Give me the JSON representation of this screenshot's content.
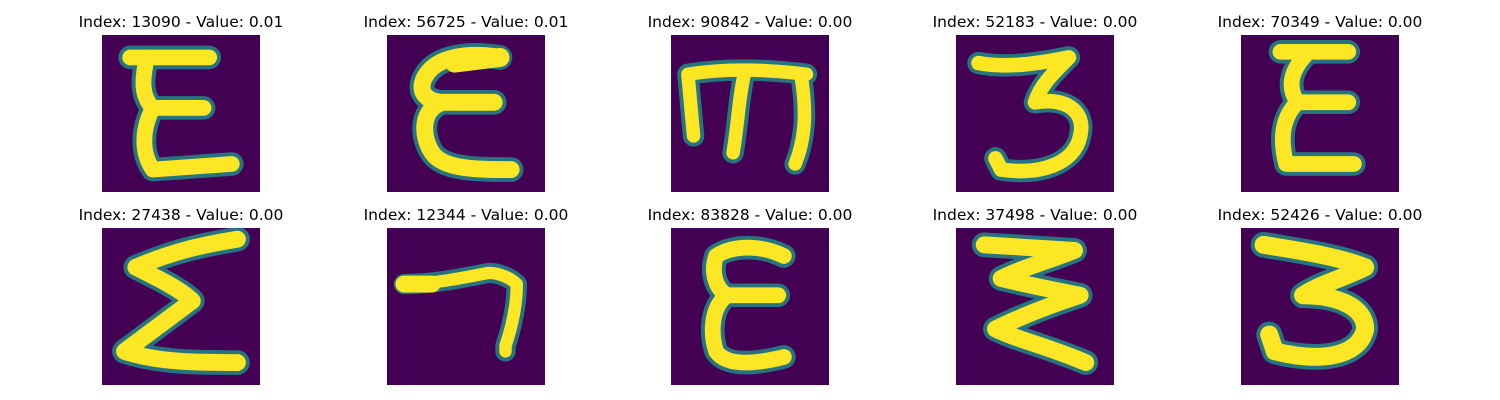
{
  "figure": {
    "colormap": {
      "background": "#440154",
      "mid": "#21918c",
      "foreground": "#fde725"
    },
    "panels": [
      {
        "title": "Index: 13090 - Value: 0.01",
        "index": 13090,
        "value": "0.01",
        "glyph": "E"
      },
      {
        "title": "Index: 56725 - Value: 0.01",
        "index": 56725,
        "value": "0.01",
        "glyph": "E"
      },
      {
        "title": "Index: 90842 - Value: 0.00",
        "index": 90842,
        "value": "0.00",
        "glyph": "m"
      },
      {
        "title": "Index: 52183 - Value: 0.00",
        "index": 52183,
        "value": "0.00",
        "glyph": "3"
      },
      {
        "title": "Index: 70349 - Value: 0.00",
        "index": 70349,
        "value": "0.00",
        "glyph": "E"
      },
      {
        "title": "Index: 27438 - Value: 0.00",
        "index": 27438,
        "value": "0.00",
        "glyph": "sigma"
      },
      {
        "title": "Index: 12344 - Value: 0.00",
        "index": 12344,
        "value": "0.00",
        "glyph": "7"
      },
      {
        "title": "Index: 83828 - Value: 0.00",
        "index": 83828,
        "value": "0.00",
        "glyph": "E"
      },
      {
        "title": "Index: 37498 - Value: 0.00",
        "index": 37498,
        "value": "0.00",
        "glyph": "zigzag"
      },
      {
        "title": "Index: 52426 - Value: 0.00",
        "index": 52426,
        "value": "0.00",
        "glyph": "3"
      }
    ]
  }
}
